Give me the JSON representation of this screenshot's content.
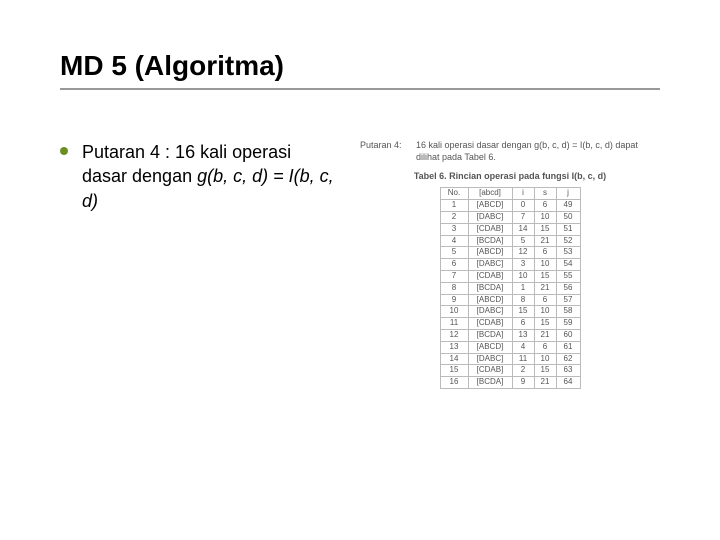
{
  "title": "MD 5 (Algoritma)",
  "bullet_plain_1": "Putaran 4 : 16 kali operasi dasar dengan ",
  "bullet_italic": "g(b, c, d) = I(b, c, d)",
  "right_header": {
    "label": "Putaran 4:",
    "desc": "16 kali operasi dasar dengan g(b, c, d) = I(b, c, d) dapat dilihat pada Tabel 6."
  },
  "table_caption": "Tabel 6. Rincian operasi pada fungsi I(b, c, d)",
  "table": {
    "columns": [
      "No.",
      "[abcd]",
      "i",
      "s",
      "j"
    ],
    "rows": [
      [
        "1",
        "[ABCD]",
        "0",
        "6",
        "49"
      ],
      [
        "2",
        "[DABC]",
        "7",
        "10",
        "50"
      ],
      [
        "3",
        "[CDAB]",
        "14",
        "15",
        "51"
      ],
      [
        "4",
        "[BCDA]",
        "5",
        "21",
        "52"
      ],
      [
        "5",
        "[ABCD]",
        "12",
        "6",
        "53"
      ],
      [
        "6",
        "[DABC]",
        "3",
        "10",
        "54"
      ],
      [
        "7",
        "[CDAB]",
        "10",
        "15",
        "55"
      ],
      [
        "8",
        "[BCDA]",
        "1",
        "21",
        "56"
      ],
      [
        "9",
        "[ABCD]",
        "8",
        "6",
        "57"
      ],
      [
        "10",
        "[DABC]",
        "15",
        "10",
        "58"
      ],
      [
        "11",
        "[CDAB]",
        "6",
        "15",
        "59"
      ],
      [
        "12",
        "[BCDA]",
        "13",
        "21",
        "60"
      ],
      [
        "13",
        "[ABCD]",
        "4",
        "6",
        "61"
      ],
      [
        "14",
        "[DABC]",
        "11",
        "10",
        "62"
      ],
      [
        "15",
        "[CDAB]",
        "2",
        "15",
        "63"
      ],
      [
        "16",
        "[BCDA]",
        "9",
        "21",
        "64"
      ]
    ],
    "col_widths": [
      "28px",
      "44px",
      "22px",
      "22px",
      "24px"
    ]
  },
  "colors": {
    "bullet": "#6b8e23",
    "rule": "#999999",
    "table_border": "#bbbbbb",
    "text_main": "#000000",
    "text_faint": "#555555",
    "background": "#ffffff"
  },
  "fonts": {
    "title_size": 28,
    "body_size": 18,
    "table_size": 8,
    "caption_size": 9
  }
}
